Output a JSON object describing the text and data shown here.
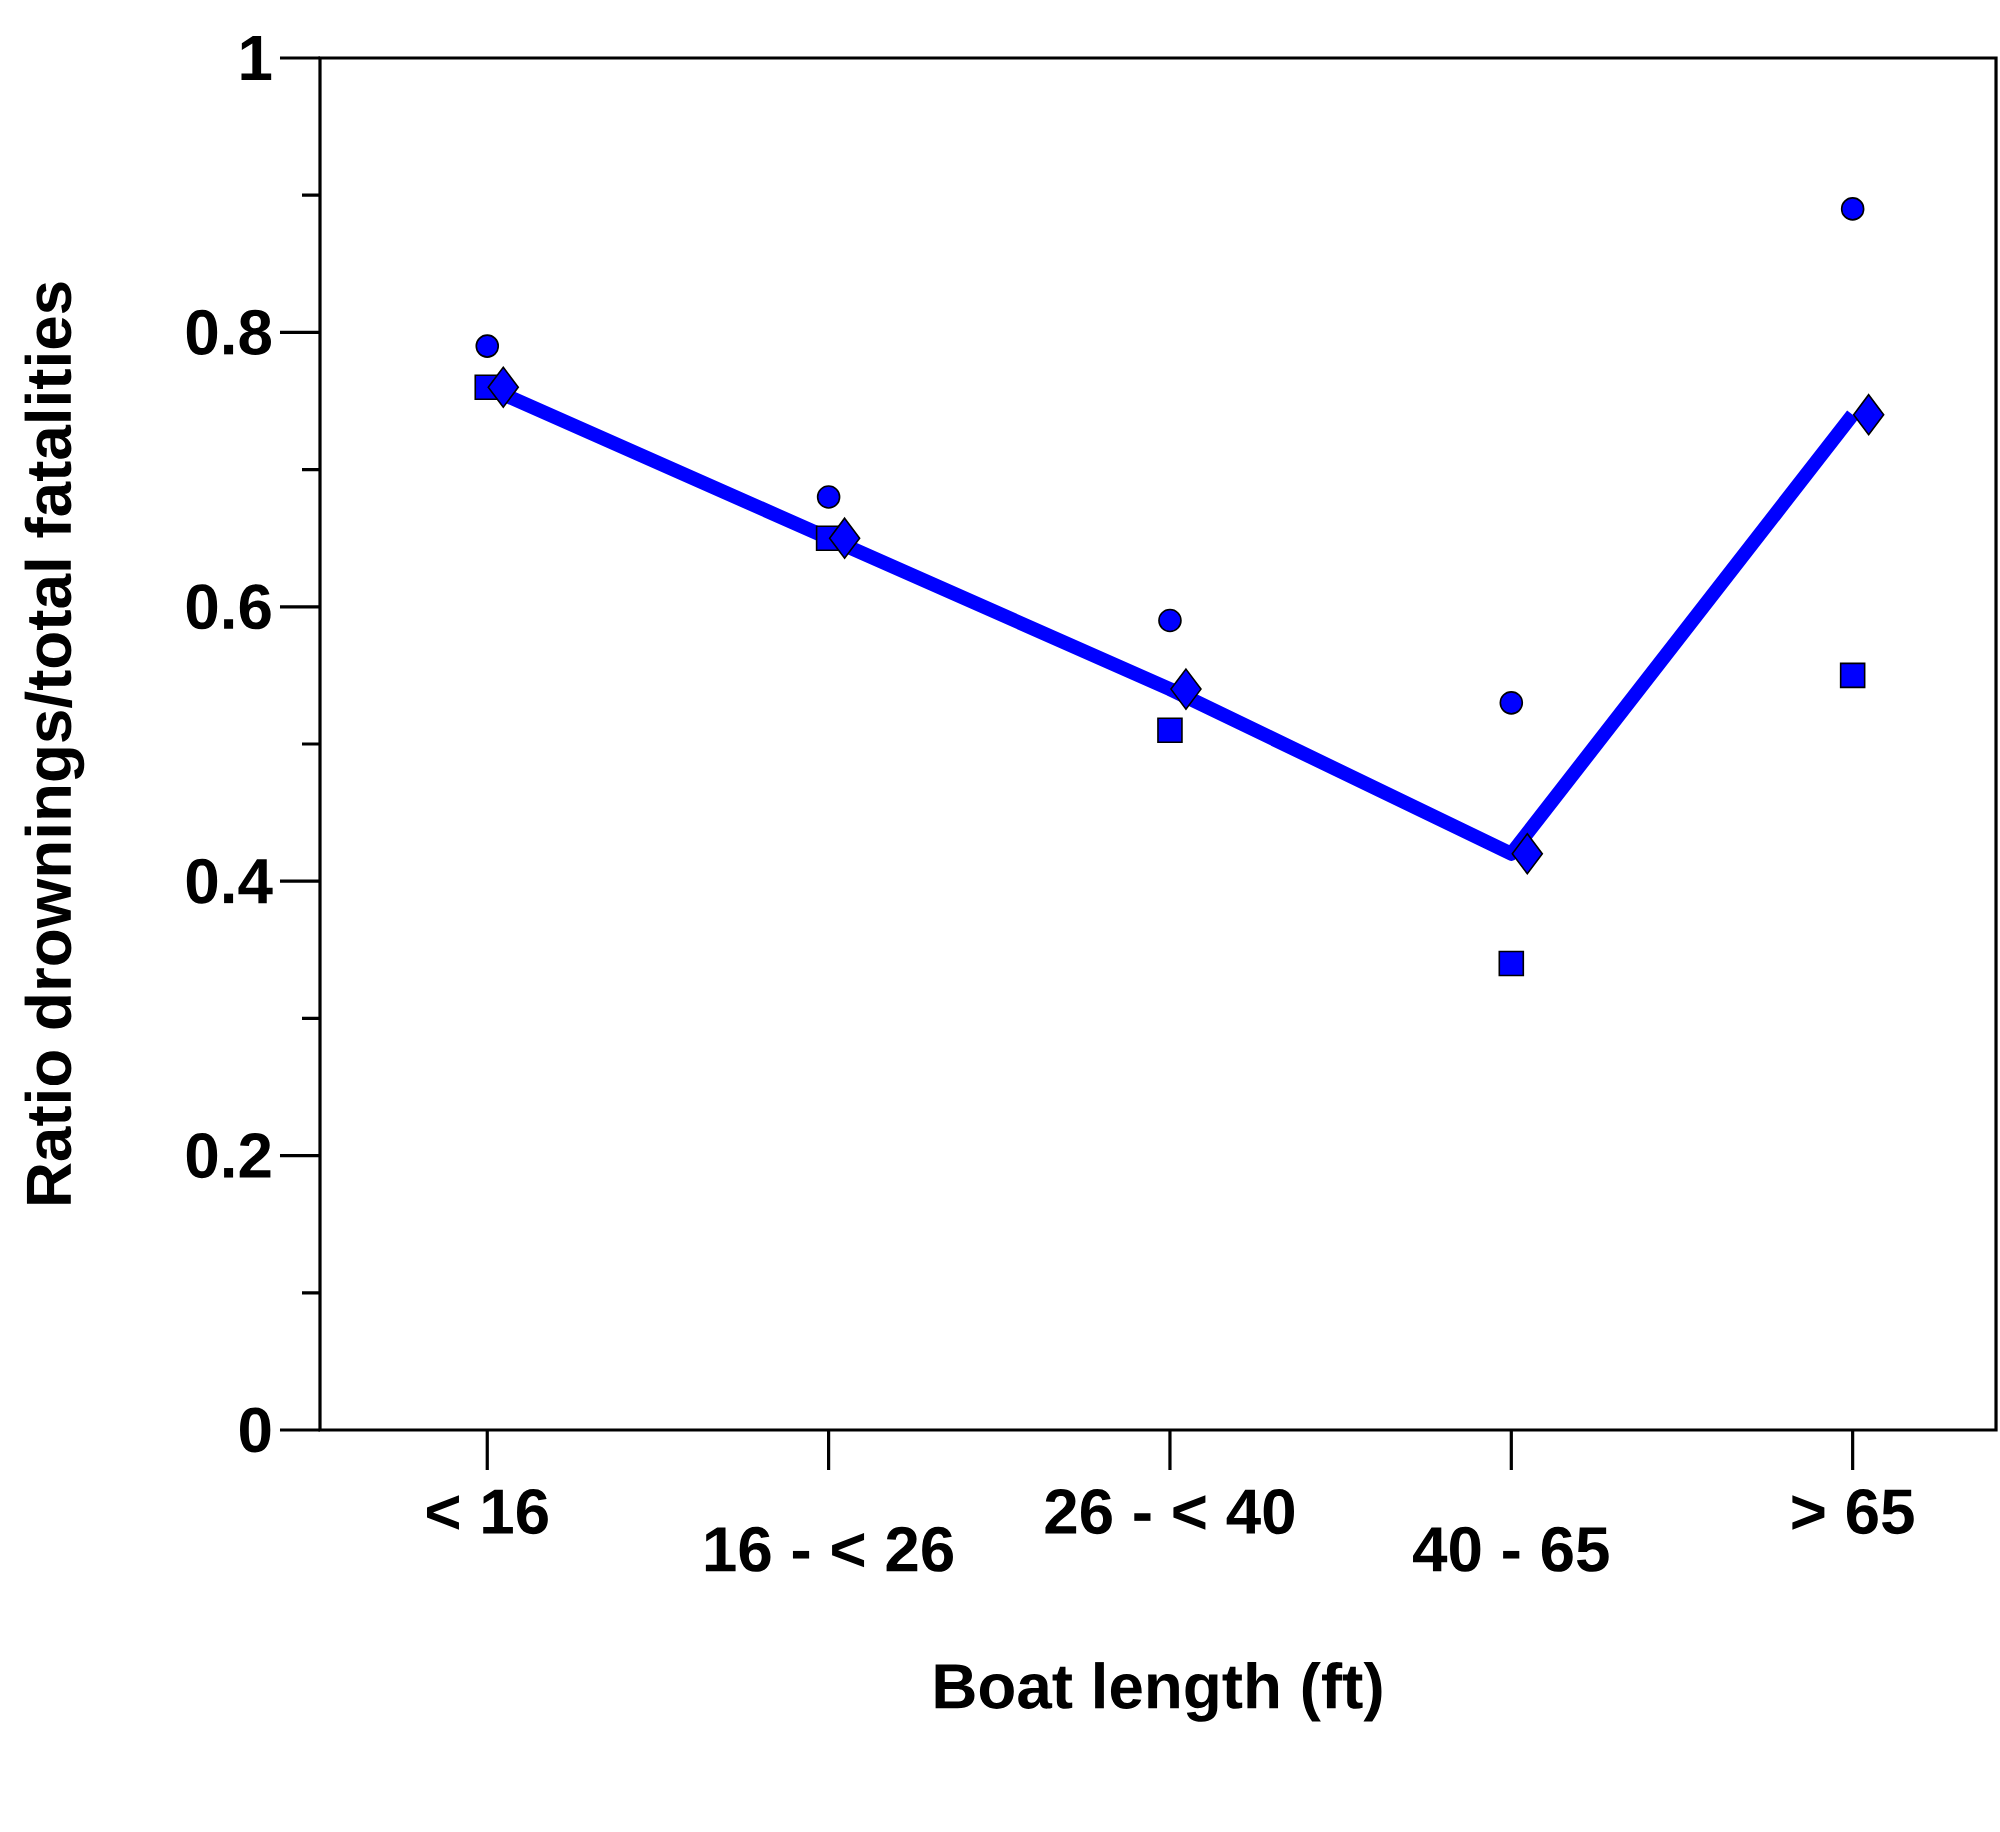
{
  "chart_data": {
    "type": "line",
    "xlabel": "Boat length (ft)",
    "ylabel": "Ratio drownings/total fatalities",
    "categories": [
      "< 16",
      "16 - < 26",
      "26 - < 40",
      "40 - 65",
      "> 65"
    ],
    "ylim": [
      0,
      1
    ],
    "yticks": [
      0,
      {
        "value": 0.1,
        "label": null
      },
      0.2,
      {
        "value": 0.3,
        "label": null
      },
      0.4,
      {
        "value": 0.5,
        "label": null
      },
      0.6,
      {
        "value": 0.7,
        "label": null
      },
      0.8,
      {
        "value": 0.9,
        "label": null
      },
      1
    ],
    "series": [
      {
        "type": "scatter",
        "marker": "circle",
        "color": "#0000ff",
        "values": [
          0.79,
          0.68,
          0.59,
          0.53,
          0.89
        ]
      },
      {
        "type": "scatter",
        "marker": "square",
        "color": "#0000ff",
        "values": [
          0.76,
          0.65,
          0.51,
          0.34,
          0.55
        ]
      },
      {
        "marker": "diamond",
        "color": "#0000ff",
        "values": [
          0.76,
          0.65,
          0.54,
          0.42,
          0.74
        ]
      }
    ]
  }
}
